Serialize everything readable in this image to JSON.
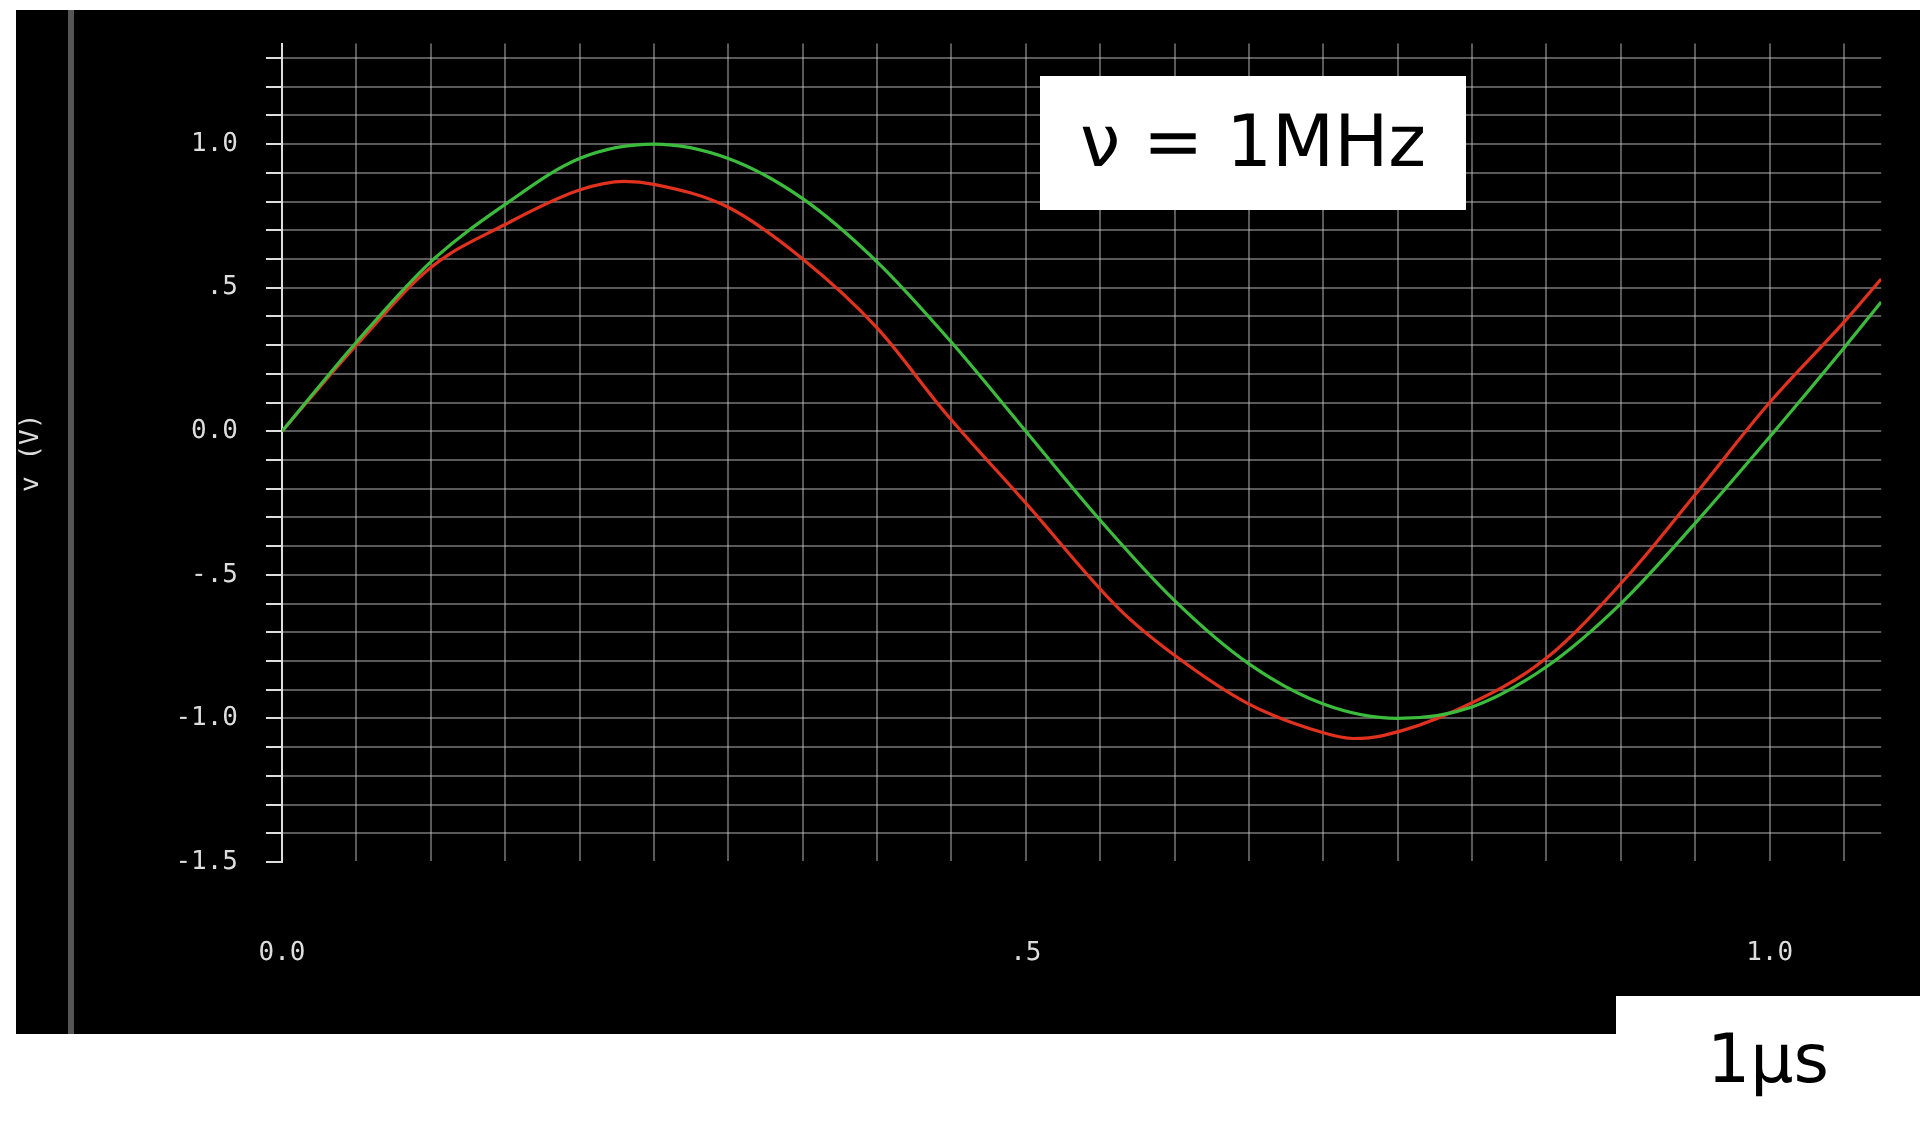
{
  "chart_data": {
    "type": "line",
    "ylabel": "v (V)",
    "annotations": [
      "ν = 1MHz",
      "1μs"
    ],
    "series": [
      {
        "color": "#3cbc3c",
        "x": [
          0,
          0.05,
          0.1,
          0.15,
          0.2,
          0.25,
          0.3,
          0.35,
          0.4,
          0.45,
          0.5,
          0.55,
          0.6,
          0.65,
          0.7,
          0.75,
          0.8,
          0.85,
          0.9,
          0.95,
          1.0,
          1.05,
          1.075
        ],
        "values": [
          0,
          0.31,
          0.59,
          0.79,
          0.95,
          1,
          0.95,
          0.81,
          0.59,
          0.31,
          0,
          -0.31,
          -0.59,
          -0.81,
          -0.95,
          -1,
          -0.96,
          -0.82,
          -0.6,
          -0.32,
          -0.02,
          0.29,
          0.45
        ]
      },
      {
        "color": "#e0321e",
        "x": [
          0,
          0.05,
          0.1,
          0.15,
          0.2,
          0.23,
          0.25,
          0.3,
          0.35,
          0.4,
          0.445,
          0.5,
          0.563,
          0.6,
          0.65,
          0.7,
          0.72,
          0.74,
          0.79,
          0.85,
          0.907,
          0.95,
          1.0,
          1.05,
          1.075
        ],
        "values": [
          0,
          0.3,
          0.57,
          0.72,
          0.84,
          0.87,
          0.86,
          0.78,
          0.6,
          0.36,
          0.07,
          -0.25,
          -0.62,
          -0.78,
          -0.95,
          -1.05,
          -1.07,
          -1.06,
          -0.97,
          -0.79,
          -0.49,
          -0.22,
          0.1,
          0.38,
          0.53
        ]
      }
    ],
    "marker": "none",
    "grid": true,
    "xlim": [
      0,
      1.075
    ],
    "ylim": [
      -1.5,
      1.35
    ],
    "xticks": [
      {
        "value": 0,
        "label": "0.0"
      },
      {
        "value": 0.05,
        "label": null
      },
      {
        "value": 0.1,
        "label": null
      },
      {
        "value": 0.15,
        "label": null
      },
      {
        "value": 0.2,
        "label": null
      },
      {
        "value": 0.25,
        "label": null
      },
      {
        "value": 0.3,
        "label": null
      },
      {
        "value": 0.35,
        "label": null
      },
      {
        "value": 0.4,
        "label": null
      },
      {
        "value": 0.45,
        "label": null
      },
      {
        "value": 0.5,
        "label": ".5"
      },
      {
        "value": 0.55,
        "label": null
      },
      {
        "value": 0.6,
        "label": null
      },
      {
        "value": 0.65,
        "label": null
      },
      {
        "value": 0.7,
        "label": null
      },
      {
        "value": 0.75,
        "label": null
      },
      {
        "value": 0.8,
        "label": null
      },
      {
        "value": 0.85,
        "label": null
      },
      {
        "value": 0.9,
        "label": null
      },
      {
        "value": 0.95,
        "label": null
      },
      {
        "value": 1,
        "label": "1.0"
      },
      {
        "value": 1.05,
        "label": null
      }
    ],
    "yticks": [
      {
        "value": -1.5,
        "label": "-1.5"
      },
      {
        "value": -1.4,
        "label": null
      },
      {
        "value": -1.3,
        "label": null
      },
      {
        "value": -1.2,
        "label": null
      },
      {
        "value": -1.1,
        "label": null
      },
      {
        "value": -1,
        "label": "-1.0"
      },
      {
        "value": -0.9,
        "label": null
      },
      {
        "value": -0.8,
        "label": null
      },
      {
        "value": -0.7,
        "label": null
      },
      {
        "value": -0.6,
        "label": null
      },
      {
        "value": -0.5,
        "label": "-.5"
      },
      {
        "value": -0.4,
        "label": null
      },
      {
        "value": -0.3,
        "label": null
      },
      {
        "value": -0.2,
        "label": null
      },
      {
        "value": -0.1,
        "label": null
      },
      {
        "value": 0,
        "label": "0.0"
      },
      {
        "value": 0.1,
        "label": null
      },
      {
        "value": 0.2,
        "label": null
      },
      {
        "value": 0.3,
        "label": null
      },
      {
        "value": 0.4,
        "label": null
      },
      {
        "value": 0.5,
        "label": ".5"
      },
      {
        "value": 0.6,
        "label": null
      },
      {
        "value": 0.7,
        "label": null
      },
      {
        "value": 0.8,
        "label": null
      },
      {
        "value": 0.9,
        "label": null
      },
      {
        "value": 1,
        "label": "1.0"
      },
      {
        "value": 1.1,
        "label": null
      },
      {
        "value": 1.2,
        "label": null
      },
      {
        "value": 1.3,
        "label": null
      }
    ]
  }
}
